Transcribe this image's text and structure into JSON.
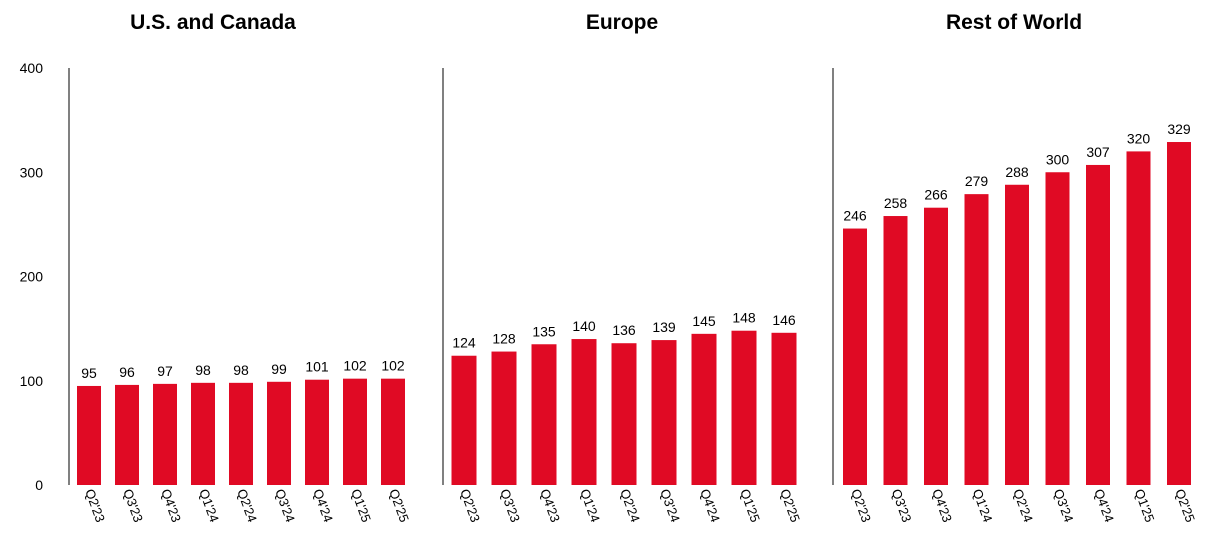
{
  "chart_data": [
    {
      "type": "bar",
      "title": "U.S. and Canada",
      "categories": [
        "Q2'23",
        "Q3'23",
        "Q4'23",
        "Q1'24",
        "Q2'24",
        "Q3'24",
        "Q4'24",
        "Q1'25",
        "Q2'25"
      ],
      "values": [
        95,
        96,
        97,
        98,
        98,
        99,
        101,
        102,
        102
      ],
      "ylim": [
        0,
        400
      ],
      "yticks": [
        0,
        100,
        200,
        300,
        400
      ],
      "color": "#e00a24"
    },
    {
      "type": "bar",
      "title": "Europe",
      "categories": [
        "Q2'23",
        "Q3'23",
        "Q4'23",
        "Q1'24",
        "Q2'24",
        "Q3'24",
        "Q4'24",
        "Q1'25",
        "Q2'25"
      ],
      "values": [
        124,
        128,
        135,
        140,
        136,
        139,
        145,
        148,
        146
      ],
      "ylim": [
        0,
        400
      ],
      "color": "#e00a24"
    },
    {
      "type": "bar",
      "title": "Rest of World",
      "categories": [
        "Q2'23",
        "Q3'23",
        "Q4'23",
        "Q1'24",
        "Q2'24",
        "Q3'24",
        "Q4'24",
        "Q1'25",
        "Q2'25"
      ],
      "values": [
        246,
        258,
        266,
        279,
        288,
        300,
        307,
        320,
        329
      ],
      "ylim": [
        0,
        400
      ],
      "color": "#e00a24"
    }
  ]
}
